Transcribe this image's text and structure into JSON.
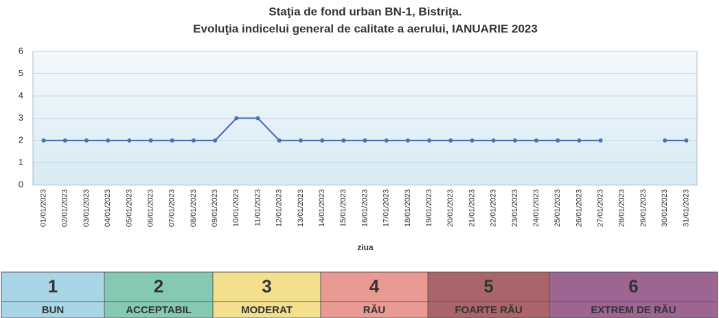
{
  "chart_data": {
    "type": "line",
    "title": "Staţia de fond urban BN-1, Bistriţa.",
    "subtitle": "Evoluţia indicelui general de calitate a aerului, IANUARIE 2023",
    "x_label": "ziua",
    "categories": [
      "01/01/2023",
      "02/01/2023",
      "03/01/2023",
      "04/01/2023",
      "05/01/2023",
      "06/01/2023",
      "07/01/2023",
      "08/01/2023",
      "09/01/2023",
      "10/01/2023",
      "11/01/2023",
      "12/01/2023",
      "13/01/2023",
      "14/01/2023",
      "15/01/2023",
      "16/01/2023",
      "17/01/2023",
      "18/01/2023",
      "19/01/2023",
      "20/01/2023",
      "21/01/2023",
      "22/01/2023",
      "23/01/2023",
      "24/01/2023",
      "25/01/2023",
      "26/01/2023",
      "27/01/2023",
      "28/01/2023",
      "29/01/2023",
      "30/01/2023",
      "31/01/2023"
    ],
    "values": [
      2,
      2,
      2,
      2,
      2,
      2,
      2,
      2,
      2,
      3,
      3,
      2,
      2,
      2,
      2,
      2,
      2,
      2,
      2,
      2,
      2,
      2,
      2,
      2,
      2,
      2,
      2,
      null,
      null,
      2,
      2
    ],
    "color": "#4a6fb5",
    "ylim": [
      0,
      6
    ],
    "yticks": [
      0,
      1,
      2,
      3,
      4,
      5,
      6
    ],
    "grid": true
  },
  "legend_table": [
    {
      "value": 1,
      "label": "BUN",
      "color": "#a9d6e6",
      "text_color": "#3f78b5"
    },
    {
      "value": 2,
      "label": "ACCEPTABIL",
      "color": "#86c9b3",
      "text_color": "#3f9a86"
    },
    {
      "value": 3,
      "label": "MODERAT",
      "color": "#f3df8c",
      "text_color": "#c9a63a"
    },
    {
      "value": 4,
      "label": "RĂU",
      "color": "#e99a92",
      "text_color": "#d8685e"
    },
    {
      "value": 5,
      "label": "FOARTE RĂU",
      "color": "#a9656a",
      "text_color": "#ffffff"
    },
    {
      "value": 6,
      "label": "EXTREM DE RĂU",
      "color": "#9c6592",
      "text_color": "#ffffff"
    }
  ]
}
